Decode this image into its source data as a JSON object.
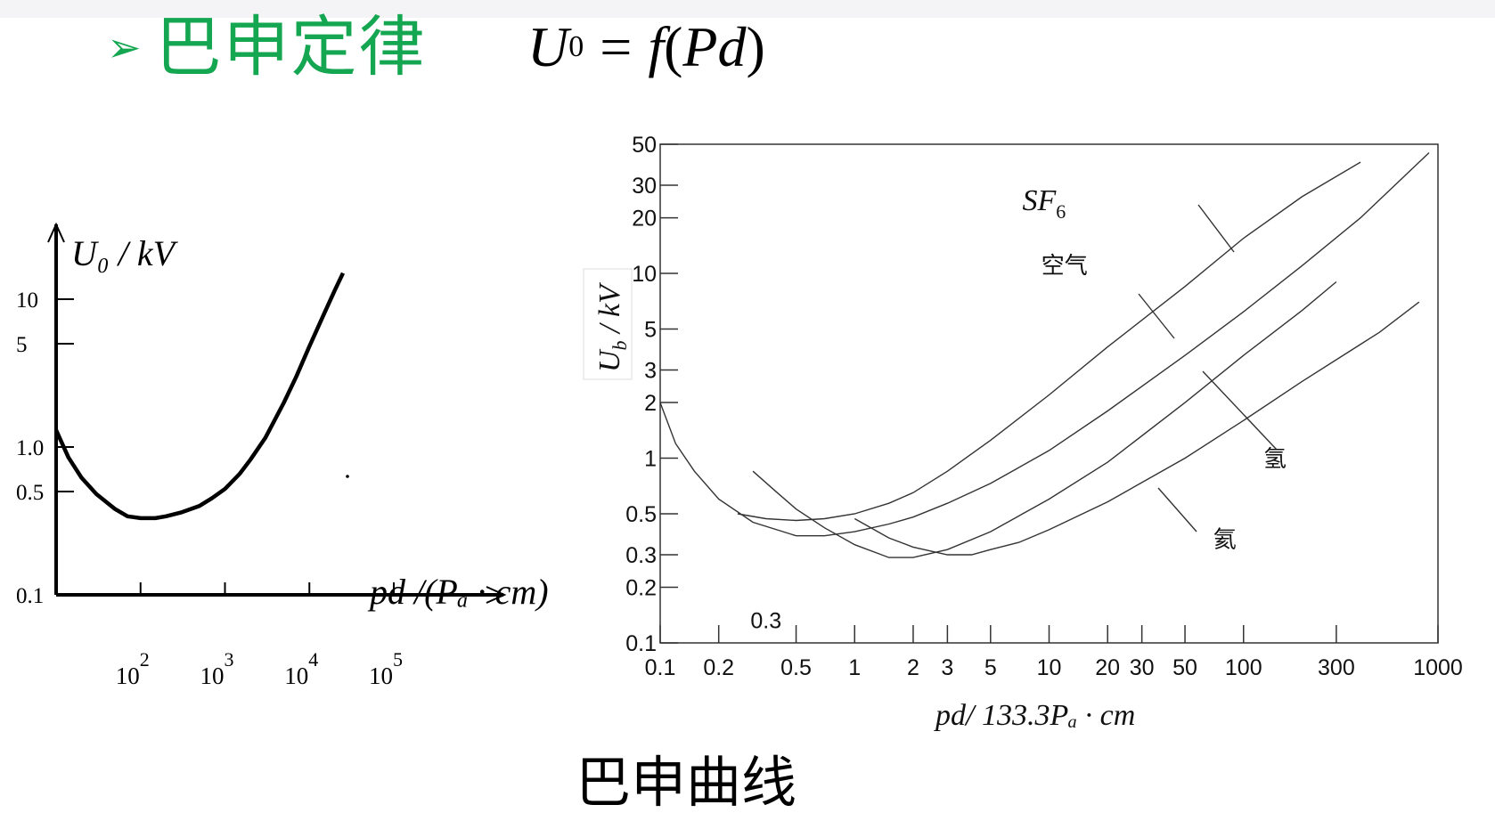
{
  "header": {
    "bullet": "➢",
    "title": "巴申定律",
    "formula": {
      "lhs": "U",
      "lhs_sub": "0",
      "equals": "=",
      "func": "f",
      "open": "(",
      "arg": "Pd",
      "close": ")"
    }
  },
  "caption": "巴申曲线",
  "chart_data": [
    {
      "type": "line",
      "ylabel": "U₀ / kV",
      "xlabel": "pd /(Pₐ · cm)",
      "x_scale": "log",
      "y_scale": "log",
      "xlim": [
        10,
        100000
      ],
      "ylim": [
        0.1,
        20
      ],
      "y_ticks": [
        {
          "value": 0.1,
          "label": "0.1"
        },
        {
          "value": 0.5,
          "label": "0.5"
        },
        {
          "value": 1.0,
          "label": "1.0"
        },
        {
          "value": 5,
          "label": "5"
        },
        {
          "value": 10,
          "label": "10"
        }
      ],
      "x_ticks": [
        {
          "value": 100,
          "label": "10",
          "exp": "2"
        },
        {
          "value": 1000,
          "label": "10",
          "exp": "3"
        },
        {
          "value": 10000,
          "label": "10",
          "exp": "4"
        },
        {
          "value": 100000,
          "label": "10",
          "exp": "5"
        }
      ],
      "series": [
        {
          "x": [
            10,
            14,
            20,
            30,
            50,
            70,
            100,
            150,
            200,
            300,
            500,
            700,
            1000,
            1500,
            2000,
            3000,
            5000,
            7000,
            10000,
            15000,
            20000,
            25000
          ],
          "y": [
            1.3,
            0.85,
            0.62,
            0.48,
            0.38,
            0.34,
            0.33,
            0.33,
            0.34,
            0.36,
            0.4,
            0.45,
            0.52,
            0.66,
            0.82,
            1.15,
            2.0,
            3.0,
            4.8,
            8.0,
            11.5,
            15.0
          ]
        }
      ]
    },
    {
      "type": "line",
      "ylabel": "U",
      "ylabel_sub": "b",
      "ylabel_rest": " / kV",
      "xlabel": "pd/ 133.3Pₐ · cm",
      "x_scale": "log",
      "y_scale": "log",
      "xlim": [
        0.1,
        1000
      ],
      "ylim": [
        0.1,
        50
      ],
      "y_ticks": [
        {
          "value": 0.1,
          "label": "0.1"
        },
        {
          "value": 0.2,
          "label": "0.2"
        },
        {
          "value": 0.3,
          "label": "0.3"
        },
        {
          "value": 0.5,
          "label": "0.5"
        },
        {
          "value": 1,
          "label": "1"
        },
        {
          "value": 2,
          "label": "2"
        },
        {
          "value": 3,
          "label": "3"
        },
        {
          "value": 5,
          "label": "5"
        },
        {
          "value": 10,
          "label": "10"
        },
        {
          "value": 20,
          "label": "20"
        },
        {
          "value": 30,
          "label": "30"
        },
        {
          "value": 50,
          "label": "50"
        }
      ],
      "x_ticks": [
        {
          "value": 0.1,
          "label": "0.1"
        },
        {
          "value": 0.2,
          "label": "0.2"
        },
        {
          "value": 0.5,
          "label": "0.5"
        },
        {
          "value": 1,
          "label": "1"
        },
        {
          "value": 2,
          "label": "2"
        },
        {
          "value": 3,
          "label": "3"
        },
        {
          "value": 5,
          "label": "5"
        },
        {
          "value": 10,
          "label": "10"
        },
        {
          "value": 20,
          "label": "20"
        },
        {
          "value": 30,
          "label": "30"
        },
        {
          "value": 50,
          "label": "50"
        },
        {
          "value": 100,
          "label": "100"
        },
        {
          "value": 300,
          "label": "300"
        },
        {
          "value": 1000,
          "label": "1000"
        }
      ],
      "extra_label": {
        "text": "0.3",
        "x": 0.35,
        "y": 0.12
      },
      "series": [
        {
          "name": "SF₆",
          "label": {
            "text": "SF",
            "sub": "6",
            "x": 10,
            "y": 22
          },
          "x": [
            0.25,
            0.35,
            0.5,
            0.7,
            1,
            1.5,
            2,
            3,
            5,
            10,
            20,
            50,
            100,
            200,
            400
          ],
          "y": [
            0.5,
            0.47,
            0.46,
            0.47,
            0.5,
            0.57,
            0.65,
            0.85,
            1.25,
            2.2,
            4.0,
            8.5,
            15.5,
            26,
            40
          ]
        },
        {
          "name": "空气",
          "label": {
            "text": "空气",
            "x": 12,
            "y": 10
          },
          "x": [
            0.1,
            0.12,
            0.15,
            0.2,
            0.3,
            0.5,
            0.7,
            1,
            1.5,
            2,
            3,
            5,
            10,
            20,
            50,
            100,
            200,
            400,
            900
          ],
          "y": [
            2.0,
            1.2,
            0.85,
            0.6,
            0.45,
            0.38,
            0.38,
            0.4,
            0.44,
            0.48,
            0.57,
            0.73,
            1.1,
            1.8,
            3.6,
            6.2,
            11,
            20,
            45
          ]
        },
        {
          "name": "氢",
          "label": {
            "text": "氢",
            "x": 145,
            "y": 0.9
          },
          "x": [
            0.3,
            0.4,
            0.5,
            0.7,
            1,
            1.5,
            2,
            3,
            5,
            10,
            20,
            50,
            100,
            200,
            300
          ],
          "y": [
            0.85,
            0.65,
            0.53,
            0.42,
            0.34,
            0.29,
            0.29,
            0.32,
            0.4,
            0.6,
            0.95,
            2.0,
            3.6,
            6.3,
            9.0
          ]
        },
        {
          "name": "氦",
          "label": {
            "text": "氦",
            "x": 80,
            "y": 0.33
          },
          "x": [
            1,
            1.5,
            2,
            3,
            4,
            5,
            7,
            10,
            20,
            50,
            100,
            200,
            500,
            800
          ],
          "y": [
            0.47,
            0.37,
            0.33,
            0.3,
            0.3,
            0.32,
            0.35,
            0.41,
            0.58,
            1.0,
            1.6,
            2.6,
            4.8,
            7.0
          ]
        }
      ]
    }
  ]
}
